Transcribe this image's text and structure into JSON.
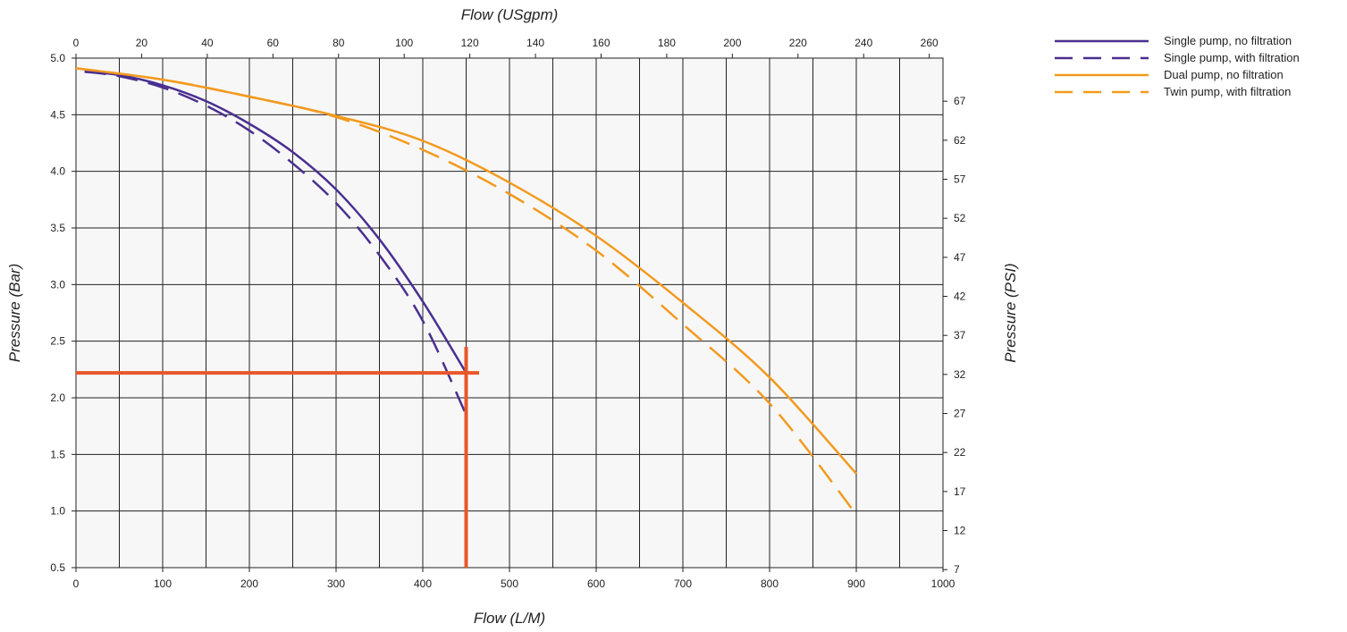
{
  "chart_data": {
    "type": "line",
    "xlabel_bottom": "Flow (L/M)",
    "xlabel_top": "Flow (USgpm)",
    "ylabel_left": "Pressure (Bar)",
    "ylabel_right": "Pressure (PSI)",
    "x_range": [
      0,
      1000
    ],
    "y_range": [
      0.5,
      5.0
    ],
    "x_ticks": [
      0,
      100,
      200,
      300,
      400,
      500,
      600,
      700,
      800,
      900,
      1000
    ],
    "x_tick_labels": [
      "0",
      "100",
      "200",
      "300",
      "400",
      "500",
      "600",
      "700",
      "800",
      "900",
      "1000"
    ],
    "y_ticks": [
      0.5,
      1.0,
      1.5,
      2.0,
      2.5,
      3.0,
      3.5,
      4.0,
      4.5,
      5.0
    ],
    "y_tick_labels": [
      "0.5",
      "1.0",
      "1.5",
      "2.0",
      "2.5",
      "3.0",
      "3.5",
      "4.0",
      "4.5",
      "5.0"
    ],
    "top_ticks": [
      0,
      20,
      40,
      60,
      80,
      100,
      120,
      140,
      160,
      180,
      200,
      220,
      240,
      260
    ],
    "top_tick_labels": [
      "0",
      "20",
      "40",
      "60",
      "80",
      "100",
      "120",
      "140",
      "160",
      "180",
      "200",
      "220",
      "240",
      "260"
    ],
    "right_ticks": [
      7,
      12,
      17,
      22,
      27,
      32,
      37,
      42,
      47,
      52,
      57,
      62,
      67
    ],
    "right_tick_labels": [
      "7",
      "12",
      "17",
      "22",
      "27",
      "32",
      "37",
      "42",
      "47",
      "52",
      "57",
      "62",
      "67"
    ],
    "grid": true,
    "legend_position": "top-right",
    "series": [
      {
        "name": "Single pump, no filtration",
        "color": "#4a2f8f",
        "dash": "solid",
        "points": [
          [
            10,
            4.88
          ],
          [
            50,
            4.85
          ],
          [
            100,
            4.76
          ],
          [
            150,
            4.62
          ],
          [
            200,
            4.42
          ],
          [
            250,
            4.17
          ],
          [
            300,
            3.84
          ],
          [
            350,
            3.4
          ],
          [
            400,
            2.85
          ],
          [
            450,
            2.22
          ]
        ]
      },
      {
        "name": "Single pump, with filtration",
        "color": "#4a2f8f",
        "dash": "dashed",
        "points": [
          [
            10,
            4.88
          ],
          [
            50,
            4.84
          ],
          [
            100,
            4.74
          ],
          [
            150,
            4.58
          ],
          [
            200,
            4.36
          ],
          [
            250,
            4.07
          ],
          [
            300,
            3.72
          ],
          [
            350,
            3.26
          ],
          [
            400,
            2.68
          ],
          [
            450,
            1.85
          ]
        ]
      },
      {
        "name": "Dual pump, no filtration",
        "color": "#f29a1f",
        "dash": "solid",
        "points": [
          [
            0,
            4.91
          ],
          [
            100,
            4.81
          ],
          [
            200,
            4.66
          ],
          [
            300,
            4.49
          ],
          [
            400,
            4.27
          ],
          [
            500,
            3.9
          ],
          [
            600,
            3.43
          ],
          [
            700,
            2.84
          ],
          [
            800,
            2.18
          ],
          [
            900,
            1.33
          ]
        ]
      },
      {
        "name": "Twin pump, with filtration",
        "color": "#f29a1f",
        "dash": "dashed",
        "points": [
          [
            0,
            4.91
          ],
          [
            100,
            4.81
          ],
          [
            200,
            4.66
          ],
          [
            300,
            4.48
          ],
          [
            400,
            4.19
          ],
          [
            500,
            3.8
          ],
          [
            600,
            3.3
          ],
          [
            700,
            2.65
          ],
          [
            800,
            1.95
          ],
          [
            900,
            0.97
          ]
        ]
      }
    ],
    "marker_lines": {
      "color": "#e8572a",
      "horizontal_y": 2.22,
      "horizontal_x_range": [
        0,
        465
      ],
      "vertical_x": 450,
      "vertical_y_range": [
        0.5,
        2.45
      ]
    }
  }
}
